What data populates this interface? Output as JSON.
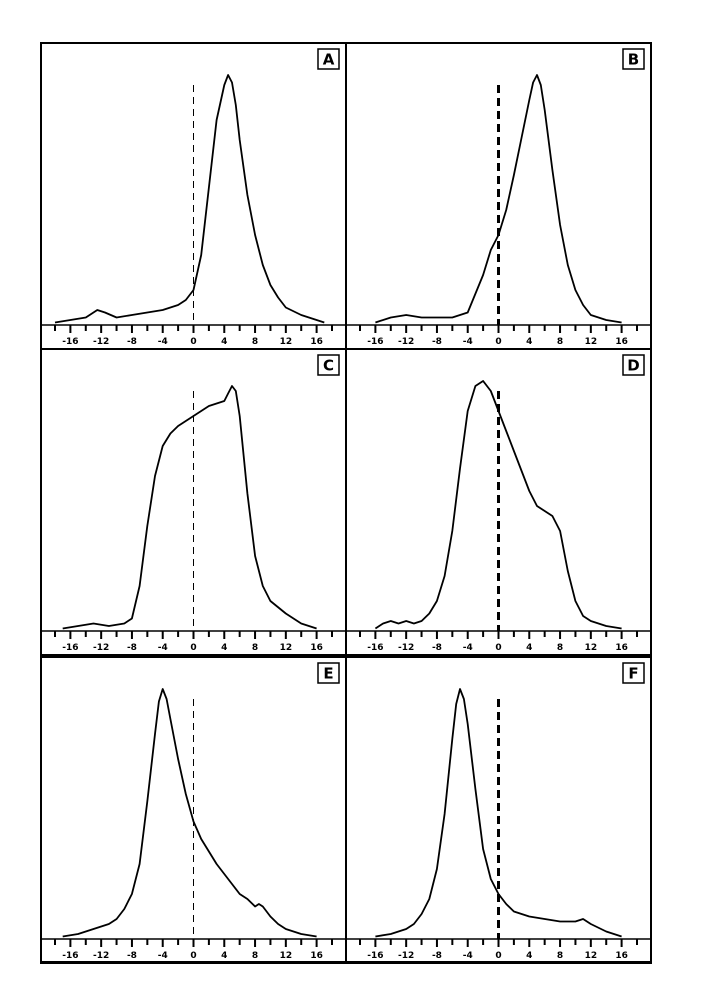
{
  "chart_data": [
    {
      "panel": "A",
      "type": "line",
      "xlim": [
        -18,
        18
      ],
      "ylim": [
        0,
        1
      ],
      "x_ticks": [
        -16,
        -12,
        -8,
        -4,
        0,
        4,
        8,
        12,
        16
      ],
      "tick_labels": [
        "-16",
        "-12",
        "-8",
        "-4",
        "0",
        "4",
        "8",
        "12",
        "16"
      ],
      "reference_x": 0,
      "reference_style": "thin-dashed",
      "x": [
        -18,
        -16,
        -14,
        -12.5,
        -11.5,
        -10,
        -8,
        -6,
        -4,
        -2,
        -1,
        0,
        1,
        2,
        3,
        4,
        4.5,
        5,
        5.5,
        6,
        7,
        8,
        9,
        10,
        11,
        12,
        14,
        16,
        17
      ],
      "y": [
        0.01,
        0.02,
        0.03,
        0.06,
        0.05,
        0.03,
        0.04,
        0.05,
        0.06,
        0.08,
        0.1,
        0.14,
        0.28,
        0.55,
        0.82,
        0.96,
        1.0,
        0.97,
        0.88,
        0.74,
        0.52,
        0.36,
        0.24,
        0.16,
        0.11,
        0.07,
        0.04,
        0.02,
        0.01
      ]
    },
    {
      "panel": "B",
      "type": "line",
      "xlim": [
        -18,
        18
      ],
      "ylim": [
        0,
        1
      ],
      "x_ticks": [
        -16,
        -12,
        -8,
        -4,
        0,
        4,
        8,
        12,
        16
      ],
      "tick_labels": [
        "-16",
        "-12",
        "-8",
        "-4",
        "0",
        "4",
        "8",
        "12",
        "16"
      ],
      "reference_x": 0,
      "reference_style": "bold-dashed",
      "x": [
        -16,
        -14,
        -12,
        -10,
        -8,
        -6,
        -4,
        -2,
        -1,
        0,
        1,
        2,
        3,
        4,
        4.5,
        5,
        5.5,
        6,
        7,
        8,
        9,
        10,
        11,
        12,
        14,
        16
      ],
      "y": [
        0.01,
        0.03,
        0.04,
        0.03,
        0.03,
        0.03,
        0.05,
        0.2,
        0.3,
        0.36,
        0.46,
        0.6,
        0.75,
        0.9,
        0.97,
        1.0,
        0.96,
        0.86,
        0.62,
        0.4,
        0.24,
        0.14,
        0.08,
        0.04,
        0.02,
        0.01
      ]
    },
    {
      "panel": "C",
      "type": "line",
      "xlim": [
        -18,
        18
      ],
      "ylim": [
        0,
        1
      ],
      "x_ticks": [
        -16,
        -12,
        -8,
        -4,
        0,
        4,
        8,
        12,
        16
      ],
      "tick_labels": [
        "-16",
        "-12",
        "-8",
        "-4",
        "0",
        "4",
        "8",
        "12",
        "16"
      ],
      "reference_x": 0,
      "reference_style": "thin-dashed",
      "x": [
        -17,
        -15,
        -13,
        -11,
        -9,
        -8,
        -7,
        -6,
        -5,
        -4,
        -3,
        -2,
        -1,
        0,
        1,
        2,
        3,
        4,
        4.5,
        5,
        5.5,
        6,
        7,
        8,
        9,
        10,
        12,
        14,
        16
      ],
      "y": [
        0.01,
        0.02,
        0.03,
        0.02,
        0.03,
        0.05,
        0.18,
        0.42,
        0.62,
        0.74,
        0.79,
        0.82,
        0.84,
        0.86,
        0.88,
        0.9,
        0.91,
        0.92,
        0.95,
        0.98,
        0.96,
        0.86,
        0.55,
        0.3,
        0.18,
        0.12,
        0.07,
        0.03,
        0.01
      ]
    },
    {
      "panel": "D",
      "type": "line",
      "xlim": [
        -18,
        18
      ],
      "ylim": [
        0,
        1
      ],
      "x_ticks": [
        -16,
        -12,
        -8,
        -4,
        0,
        4,
        8,
        12,
        16
      ],
      "tick_labels": [
        "-16",
        "-12",
        "-8",
        "-4",
        "0",
        "4",
        "8",
        "12",
        "16"
      ],
      "reference_x": 0,
      "reference_style": "bold-dashed",
      "x": [
        -16,
        -15,
        -14,
        -13,
        -12,
        -11,
        -10,
        -9,
        -8,
        -7,
        -6,
        -5,
        -4,
        -3,
        -2,
        -1,
        0,
        1,
        2,
        3,
        4,
        5,
        6,
        7,
        8,
        9,
        10,
        11,
        12,
        14,
        16
      ],
      "y": [
        0.01,
        0.03,
        0.04,
        0.03,
        0.04,
        0.03,
        0.04,
        0.07,
        0.12,
        0.22,
        0.4,
        0.65,
        0.88,
        0.98,
        1.0,
        0.96,
        0.88,
        0.8,
        0.72,
        0.64,
        0.56,
        0.5,
        0.48,
        0.46,
        0.4,
        0.24,
        0.12,
        0.06,
        0.04,
        0.02,
        0.01
      ]
    },
    {
      "panel": "E",
      "type": "line",
      "xlim": [
        -18,
        18
      ],
      "ylim": [
        0,
        1
      ],
      "x_ticks": [
        -16,
        -12,
        -8,
        -4,
        0,
        4,
        8,
        12,
        16
      ],
      "tick_labels": [
        "-16",
        "-12",
        "-8",
        "-4",
        "0",
        "4",
        "8",
        "12",
        "16"
      ],
      "reference_x": 0,
      "reference_style": "thin-dashed",
      "x": [
        -17,
        -15,
        -13,
        -11,
        -10,
        -9,
        -8,
        -7,
        -6,
        -5,
        -4.5,
        -4,
        -3.5,
        -3,
        -2,
        -1,
        0,
        1,
        2,
        3,
        4,
        5,
        6,
        7,
        8,
        8.5,
        9,
        10,
        11,
        12,
        14,
        16
      ],
      "y": [
        0.01,
        0.02,
        0.04,
        0.06,
        0.08,
        0.12,
        0.18,
        0.3,
        0.55,
        0.82,
        0.95,
        1.0,
        0.96,
        0.88,
        0.72,
        0.58,
        0.47,
        0.4,
        0.35,
        0.3,
        0.26,
        0.22,
        0.18,
        0.16,
        0.13,
        0.14,
        0.13,
        0.09,
        0.06,
        0.04,
        0.02,
        0.01
      ]
    },
    {
      "panel": "F",
      "type": "line",
      "xlim": [
        -18,
        18
      ],
      "ylim": [
        0,
        1
      ],
      "x_ticks": [
        -16,
        -12,
        -8,
        -4,
        0,
        4,
        8,
        12,
        16
      ],
      "tick_labels": [
        "-16",
        "-12",
        "-8",
        "-4",
        "0",
        "4",
        "8",
        "12",
        "16"
      ],
      "reference_x": 0,
      "reference_style": "bold-dashed",
      "x": [
        -16,
        -14,
        -12,
        -11,
        -10,
        -9,
        -8,
        -7,
        -6,
        -5.5,
        -5,
        -4.5,
        -4,
        -3,
        -2,
        -1,
        0,
        1,
        2,
        4,
        6,
        8,
        10,
        11,
        12,
        14,
        16
      ],
      "y": [
        0.01,
        0.02,
        0.04,
        0.06,
        0.1,
        0.16,
        0.28,
        0.5,
        0.8,
        0.94,
        1.0,
        0.96,
        0.86,
        0.6,
        0.36,
        0.24,
        0.18,
        0.14,
        0.11,
        0.09,
        0.08,
        0.07,
        0.07,
        0.08,
        0.06,
        0.03,
        0.01
      ]
    }
  ]
}
